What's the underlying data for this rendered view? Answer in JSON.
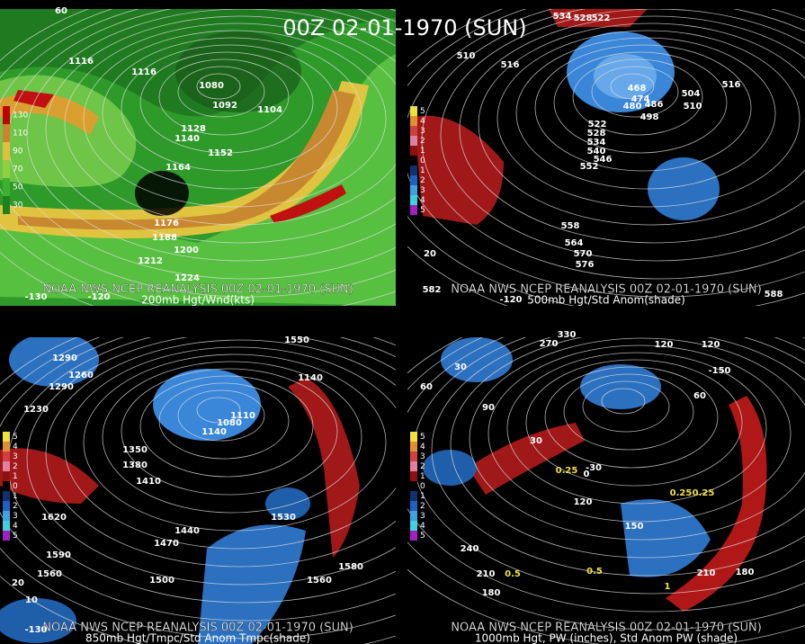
{
  "title": "00Z 02-01-1970 (SUN)",
  "panels": [
    {
      "source": "NOAA NWS NCEP REANALYSIS 00Z 02-01-1970 (SUN)",
      "caption": "200mb Hgt/Wnd(kts)",
      "legend": [
        "130",
        "110",
        "90",
        "70",
        "50",
        "30"
      ],
      "labels": [
        "1116",
        "1116",
        "1092",
        "1104",
        "1128",
        "1140",
        "1152",
        "1164",
        "1176",
        "1188",
        "1200",
        "1212",
        "1224",
        "1080",
        "-130",
        "-120",
        "60"
      ]
    },
    {
      "source": "NOAA NWS NCEP REANALYSIS 00Z 02-01-1970 (SUN)",
      "caption": "500mb Hgt/Std Anom(shade)",
      "legend": [
        "5",
        "4",
        "3",
        "2",
        "1",
        "0",
        "1",
        "2",
        "3",
        "4",
        "5"
      ],
      "labels": [
        "534",
        "528",
        "522",
        "516",
        "510",
        "504",
        "510",
        "516",
        "468",
        "474",
        "480",
        "486",
        "498",
        "522",
        "528",
        "534",
        "540",
        "546",
        "552",
        "558",
        "564",
        "570",
        "576",
        "582",
        "588",
        "-120",
        "20"
      ]
    },
    {
      "source": "NOAA NWS NCEP REANALYSIS 00Z 02-01-1970 (SUN)",
      "caption": "850mb Hgt/Tmpc/Std Anom Tmpc(shade)",
      "legend": [
        "5",
        "4",
        "3",
        "2",
        "1",
        "0",
        "1",
        "2",
        "3",
        "4",
        "5"
      ],
      "labels": [
        "1290",
        "1260",
        "1290",
        "1230",
        "1350",
        "1380",
        "1410",
        "1440",
        "1470",
        "1500",
        "1560",
        "1590",
        "1620",
        "1530",
        "1560",
        "1580",
        "1550",
        "1140",
        "1110",
        "1080",
        "1140",
        "-130",
        "20",
        "10"
      ]
    },
    {
      "source": "NOAA NWS NCEP REANALYSIS 00Z 02-01-1970 (SUN)",
      "caption": "1000mb Hgt, PW (inches), Std Anom PW (shade)",
      "legend": [
        "5",
        "4",
        "3",
        "2",
        "1",
        "0",
        "1",
        "2",
        "3",
        "4",
        "5"
      ],
      "labels": [
        "330",
        "270",
        "30",
        "60",
        "90",
        "120",
        "120",
        "-150",
        "60",
        "30",
        "0",
        "-30",
        "120",
        "150",
        "180",
        "210",
        "210",
        "180",
        "240",
        "0.5",
        "0.25",
        "0.25",
        "0.25",
        "0.5",
        "1"
      ]
    }
  ]
}
